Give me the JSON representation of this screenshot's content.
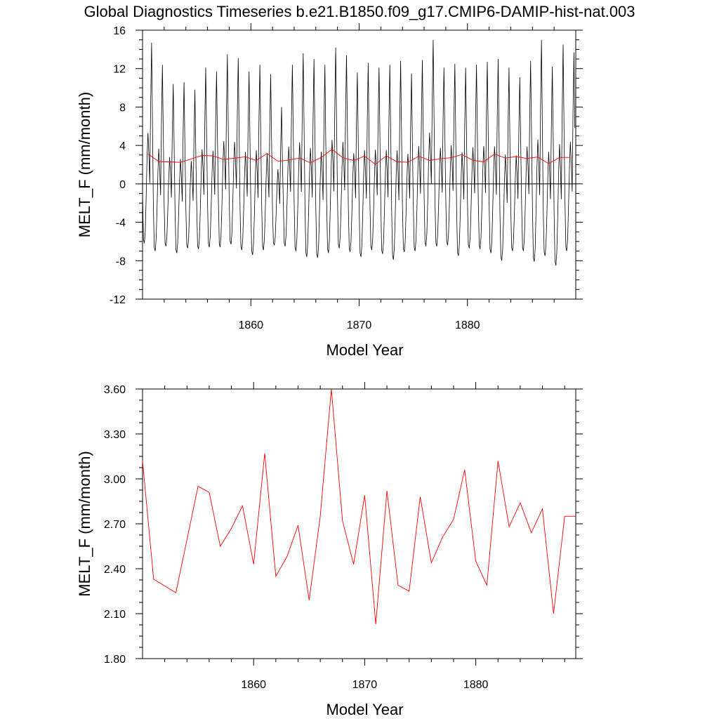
{
  "title": "Global Diagnostics Timeseries b.e21.B1850.f09_g17.CMIP6-DAMIP-hist-nat.003",
  "chart_data": [
    {
      "type": "line",
      "xlabel": "Model Year",
      "ylabel": "MELT_F (mm/month)",
      "xlim": [
        1850,
        1890
      ],
      "ylim": [
        -12,
        16
      ],
      "x_ticks": [
        "1860",
        "1870",
        "1880"
      ],
      "y_ticks": [
        "-12",
        "-8",
        "-4",
        "0",
        "4",
        "8",
        "12",
        "16"
      ],
      "zero_line": true,
      "series": [
        {
          "color": "#000000",
          "kind": "monthly",
          "monthly_max": [
            14.7,
            12.4,
            10.4,
            10.6,
            9.8,
            12.1,
            11.7,
            13.5,
            13.1,
            11.7,
            12.4,
            11.4,
            8.0,
            12.4,
            13.6,
            13.0,
            12.4,
            14.2,
            13.4,
            11.6,
            12.6,
            12.1,
            12.4,
            12.8,
            11.5,
            12.9,
            15.0,
            12.1,
            12.5,
            12.1,
            12.4,
            12.7,
            13.0,
            12.1,
            11.1,
            12.8,
            15.0,
            12.2,
            14.5,
            13.7
          ],
          "monthly_min": [
            -6.2,
            -7.0,
            -6.5,
            -7.2,
            -6.7,
            -6.8,
            -6.6,
            -6.6,
            -6.3,
            -6.9,
            -7.4,
            -6.9,
            -6.4,
            -6.5,
            -7.0,
            -7.6,
            -7.7,
            -7.2,
            -6.7,
            -7.1,
            -7.6,
            -6.9,
            -7.3,
            -7.9,
            -7.1,
            -7.0,
            -6.5,
            -6.5,
            -6.4,
            -7.5,
            -6.7,
            -6.8,
            -7.2,
            -8.0,
            -7.0,
            -7.0,
            -8.1,
            -7.5,
            -8.5,
            -7.0
          ]
        },
        {
          "color": "#ff0000",
          "kind": "annual",
          "years": [
            1850.5,
            1851.5,
            1853.5,
            1855.5,
            1856.5,
            1857.5,
            1858.5,
            1859.5,
            1860.5,
            1861.5,
            1862.5,
            1863.5,
            1864.5,
            1865.5,
            1866.5,
            1867.5,
            1868.5,
            1869.5,
            1870.5,
            1871.5,
            1872.5,
            1873.5,
            1874.5,
            1875.5,
            1876.5,
            1877.5,
            1878.5,
            1879.5,
            1880.5,
            1881.5,
            1882.5,
            1883.5,
            1884.5,
            1885.5,
            1886.5,
            1887.5,
            1888.5,
            1889.5
          ]
        }
      ]
    },
    {
      "type": "line",
      "xlabel": "Model Year",
      "ylabel": "MELT_F (mm/month)",
      "xlim": [
        1850,
        1889
      ],
      "ylim": [
        1.8,
        3.6
      ],
      "x_ticks": [
        "1860",
        "1870",
        "1880"
      ],
      "y_ticks": [
        "1.80",
        "2.10",
        "2.40",
        "2.70",
        "3.00",
        "3.30",
        "3.60"
      ],
      "series": [
        {
          "color": "#ff0000",
          "x": [
            1850.0,
            1851.0,
            1853.0,
            1855.0,
            1856.0,
            1857.0,
            1858.0,
            1859.0,
            1860.0,
            1861.0,
            1862.0,
            1863.0,
            1864.0,
            1865.0,
            1866.0,
            1867.0,
            1868.0,
            1869.0,
            1870.0,
            1871.0,
            1872.0,
            1873.0,
            1874.0,
            1875.0,
            1876.0,
            1877.0,
            1878.0,
            1879.0,
            1880.0,
            1881.0,
            1882.0,
            1883.0,
            1884.0,
            1885.0,
            1886.0,
            1887.0,
            1888.0,
            1889.0
          ],
          "y": [
            3.12,
            2.33,
            2.24,
            2.95,
            2.91,
            2.55,
            2.67,
            2.82,
            2.43,
            3.17,
            2.35,
            2.48,
            2.69,
            2.19,
            2.75,
            3.6,
            2.72,
            2.43,
            2.89,
            2.03,
            2.92,
            2.29,
            2.25,
            2.88,
            2.44,
            2.61,
            2.73,
            3.06,
            2.45,
            2.29,
            3.12,
            2.68,
            2.84,
            2.64,
            2.8,
            2.1,
            2.75,
            2.75
          ]
        }
      ]
    }
  ]
}
